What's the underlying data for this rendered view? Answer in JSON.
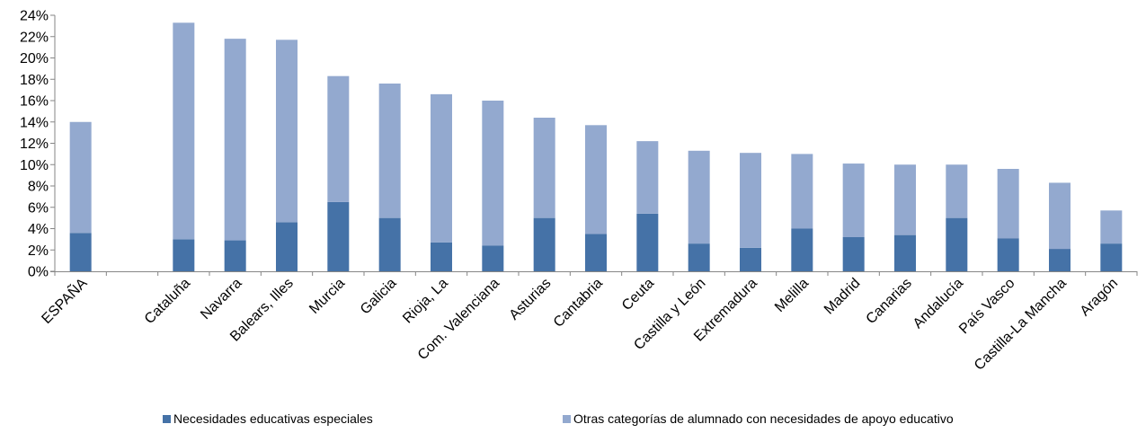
{
  "chart_data": {
    "type": "bar",
    "stacked": true,
    "categories": [
      "ESPAÑA",
      "",
      "Cataluña",
      "Navarra",
      "Balears, Illes",
      "Murcia",
      "Galicia",
      "Rioja, La",
      "Com. Valenciana",
      "Asturias",
      "Cantabria",
      "Ceuta",
      "Castilla y León",
      "Extremadura",
      "Melilla",
      "Madrid",
      "Canarias",
      "Andalucía",
      "País Vasco",
      "Castilla-La Mancha",
      "Aragón"
    ],
    "series": [
      {
        "name": "Necesidades educativas especiales",
        "color": "#4572a7",
        "values": [
          3.6,
          null,
          3.0,
          2.9,
          4.6,
          6.5,
          5.0,
          2.7,
          2.4,
          5.0,
          3.5,
          5.4,
          2.6,
          2.2,
          4.0,
          3.2,
          3.4,
          5.0,
          3.1,
          2.1,
          2.6
        ]
      },
      {
        "name": "Otras categorías de alumnado con necesidades de apoyo educativo",
        "color": "#93a9cf",
        "values": [
          10.4,
          null,
          20.3,
          18.9,
          17.1,
          11.8,
          12.6,
          13.9,
          13.6,
          9.4,
          10.2,
          6.8,
          8.7,
          8.9,
          7.0,
          6.9,
          6.6,
          5.0,
          6.5,
          6.2,
          3.1
        ]
      }
    ],
    "y_ticks": [
      "0%",
      "2%",
      "4%",
      "6%",
      "8%",
      "10%",
      "12%",
      "14%",
      "16%",
      "18%",
      "20%",
      "22%",
      "24%"
    ],
    "ylim": [
      0,
      24
    ],
    "grid": false,
    "legend": "bottom"
  }
}
